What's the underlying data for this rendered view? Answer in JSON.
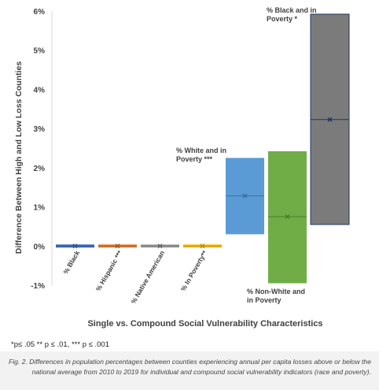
{
  "chart_data": {
    "type": "floating-bar",
    "ylabel": "Difference Between High and Low Loss Counties",
    "xlabel": "Single vs. Compound Social Vulnerability Characteristics",
    "ylim": [
      -1,
      6
    ],
    "yticks": [
      "-1%",
      "0%",
      "1%",
      "2%",
      "3%",
      "4%",
      "5%",
      "6%"
    ],
    "grid": false,
    "categories": [
      {
        "label": "% Black",
        "low": -0.03,
        "high": 0.04,
        "mean": 0.01,
        "color": "#4472c4",
        "marker_color": "#2f4f8f"
      },
      {
        "label": "% Hispanic ***",
        "low": 0.02,
        "high": 0.09,
        "mean": 0.06,
        "color": "#ed7d31",
        "marker_color": "#9e5a2a"
      },
      {
        "label": "% Native American",
        "low": -0.02,
        "high": 0.02,
        "mean": 0.0,
        "color": "#a5a5a5",
        "marker_color": "#666666"
      },
      {
        "label": "% In Poverty**",
        "low": -0.02,
        "high": 0.02,
        "mean": 0.0,
        "color": "#ffc000",
        "marker_color": "#b08a2c"
      },
      {
        "label": "% White and in Poverty ***",
        "low": 0.3,
        "high": 2.25,
        "mean": 1.28,
        "color": "#5b9bd5",
        "marker_color": "#3b6ea0"
      },
      {
        "label": "% Non-White and in Poverty",
        "low": -0.95,
        "high": 2.42,
        "mean": 0.75,
        "color": "#70ad47",
        "marker_color": "#4a7a2d"
      },
      {
        "label": "% Black and in Poverty *",
        "low": 0.55,
        "high": 5.92,
        "mean": 3.23,
        "color": "#7b7b7b",
        "marker_color": "#1f3763"
      }
    ],
    "annotations": [
      {
        "text_lines": [
          "% White and in",
          "Poverty ***"
        ],
        "for": 4
      },
      {
        "text_lines": [
          "% Non-White and",
          "in Poverty"
        ],
        "for": 5
      },
      {
        "text_lines": [
          "% Black and in",
          "Poverty *"
        ],
        "for": 6
      }
    ]
  },
  "footnote": "*p≤ .05 ** p ≤ .01, *** p ≤ .001",
  "caption": "Fig. 2. Differences in population percentages between counties experiencing annual per capita losses above or below the national average from 2010 to 2019 for individual and compound social vulnerability indicators (race and poverty)."
}
